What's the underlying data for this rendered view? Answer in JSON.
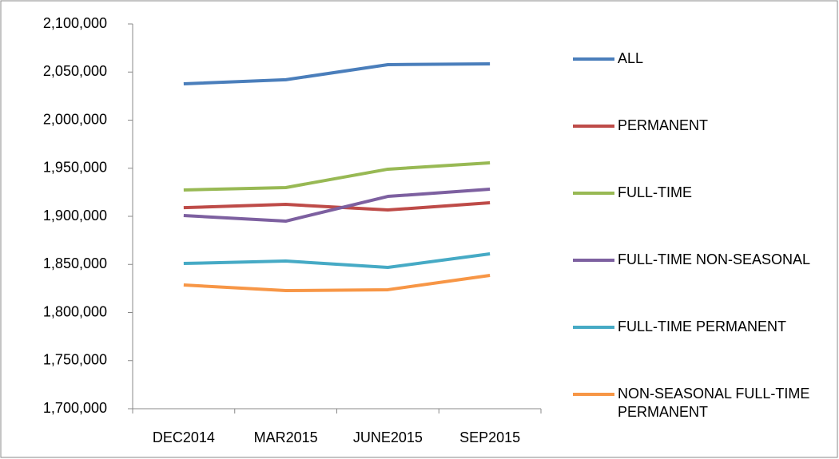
{
  "chart_data": {
    "type": "line",
    "categories": [
      "DEC2014",
      "MAR2015",
      "JUNE2015",
      "SEP2015"
    ],
    "series": [
      {
        "name": "ALL",
        "color": "#4a7ebb",
        "values": [
          2037800,
          2042000,
          2057700,
          2058500
        ]
      },
      {
        "name": "PERMANENT",
        "color": "#be4b48",
        "values": [
          1909000,
          1912400,
          1906600,
          1914100
        ]
      },
      {
        "name": "FULL-TIME",
        "color": "#98b954",
        "values": [
          1927400,
          1929900,
          1949000,
          1955600
        ]
      },
      {
        "name": "FULL-TIME NON-SEASONAL",
        "color": "#7d60a0",
        "values": [
          1900800,
          1895000,
          1920700,
          1928200
        ]
      },
      {
        "name": "FULL-TIME PERMANENT",
        "color": "#46aac5",
        "values": [
          1851000,
          1853500,
          1846900,
          1861000
        ]
      },
      {
        "name": "NON-SEASONAL FULL-TIME PERMANENT",
        "color": "#f79646",
        "values": [
          1828600,
          1822800,
          1823700,
          1838600
        ]
      }
    ],
    "ylim": [
      1700000,
      2100000
    ],
    "yticks": [
      {
        "value": 1700000,
        "label": "1,700,000"
      },
      {
        "value": 1750000,
        "label": "1,750,000"
      },
      {
        "value": 1800000,
        "label": "1,800,000"
      },
      {
        "value": 1850000,
        "label": "1,850,000"
      },
      {
        "value": 1900000,
        "label": "1,900,000"
      },
      {
        "value": 1950000,
        "label": "1,950,000"
      },
      {
        "value": 2000000,
        "label": "2,000,000"
      },
      {
        "value": 2050000,
        "label": "2,050,000"
      },
      {
        "value": 2100000,
        "label": "2,100,000"
      }
    ],
    "grid": false,
    "legend": "right"
  }
}
